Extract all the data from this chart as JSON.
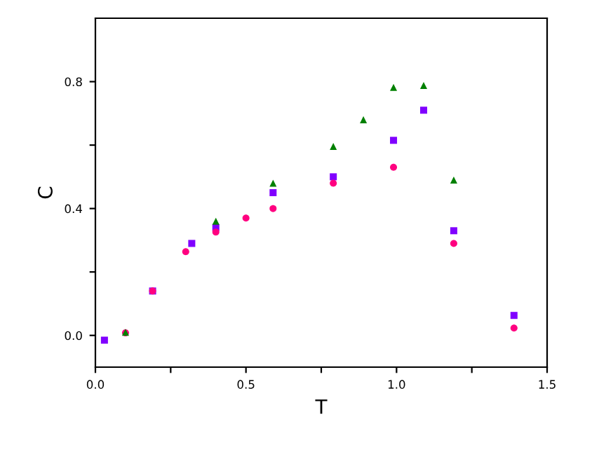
{
  "chart_data": {
    "type": "scatter",
    "xlabel": "T",
    "ylabel": "C",
    "xlim": [
      0,
      1.5
    ],
    "ylim": [
      -0.1,
      1.0
    ],
    "xticks": [
      {
        "value": 0,
        "label": "0.0"
      },
      {
        "value": 0.25,
        "label": null
      },
      {
        "value": 0.5,
        "label": "0.5"
      },
      {
        "value": 0.75,
        "label": null
      },
      {
        "value": 1.0,
        "label": "1.0"
      },
      {
        "value": 1.25,
        "label": null
      },
      {
        "value": 1.5,
        "label": "1.5"
      }
    ],
    "yticks": [
      {
        "value": 0,
        "label": "0.0"
      },
      {
        "value": 0.2,
        "label": null
      },
      {
        "value": 0.4,
        "label": "0.4"
      },
      {
        "value": 0.6,
        "label": null
      },
      {
        "value": 0.8,
        "label": "0.8"
      }
    ],
    "grid": false,
    "legend": false,
    "series": [
      {
        "color": "#8000ff",
        "marker": "square",
        "x": [
          0.03,
          0.19,
          0.32,
          0.4,
          0.59,
          0.79,
          0.99,
          1.09,
          1.19,
          1.39
        ],
        "values": [
          -0.015,
          0.14,
          0.29,
          0.34,
          0.45,
          0.5,
          0.615,
          0.71,
          0.33,
          0.063
        ]
      },
      {
        "color": "#ff0080",
        "marker": "circle",
        "x": [
          0.1,
          0.19,
          0.3,
          0.4,
          0.5,
          0.59,
          0.79,
          0.99,
          1.19,
          1.39
        ],
        "values": [
          0.008,
          0.14,
          0.264,
          0.326,
          0.37,
          0.4,
          0.48,
          0.53,
          0.29,
          0.023
        ]
      },
      {
        "color": "#008000",
        "marker": "triangle",
        "x": [
          0.1,
          0.4,
          0.59,
          0.79,
          0.89,
          0.99,
          1.09,
          1.19
        ],
        "values": [
          0.01,
          0.36,
          0.48,
          0.596,
          0.68,
          0.782,
          0.788,
          0.49
        ]
      }
    ]
  }
}
